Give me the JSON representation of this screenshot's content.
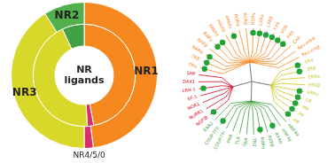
{
  "chart_data": {
    "type": "doughnut",
    "center_text": "NR ligands",
    "categories": [
      "NR1",
      "NR4/5/0",
      "NR3",
      "NR2"
    ],
    "rings": [
      {
        "values": [
          48,
          2,
          41,
          9
        ],
        "colors": [
          "#f5891f",
          "#d9306a",
          "#d8d82a",
          "#52b04c"
        ]
      },
      {
        "values": [
          47,
          2,
          44,
          7
        ],
        "colors": [
          "#f5891f",
          "#d9306a",
          "#d8d82a",
          "#43a047"
        ]
      }
    ]
  },
  "tree": {
    "clades": [
      {
        "color": "#f5891f",
        "leaves": [
          {
            "label": "TRα",
            "ligand": true
          },
          {
            "label": "TRβ",
            "ligand": true
          },
          {
            "label": "RARα",
            "ligand": true
          },
          {
            "label": "RARβ",
            "ligand": false
          },
          {
            "label": "RARγ",
            "ligand": true
          },
          {
            "label": "PPARα",
            "ligand": true
          },
          {
            "label": "PPARδ",
            "ligand": false
          },
          {
            "label": "PPARγ",
            "ligand": true
          },
          {
            "label": "RORα",
            "ligand": false
          },
          {
            "label": "RORβ",
            "ligand": false
          },
          {
            "label": "RORγ",
            "ligand": true
          },
          {
            "label": "LXRα",
            "ligand": true
          },
          {
            "label": "LXRβ",
            "ligand": true
          },
          {
            "label": "FXR",
            "ligand": true
          },
          {
            "label": "VDR",
            "ligand": true
          },
          {
            "label": "PXR",
            "ligand": true
          },
          {
            "label": "CAR",
            "ligand": false
          },
          {
            "label": "Rev-erbα",
            "ligand": false
          },
          {
            "label": "Rev-erbβ",
            "ligand": false
          }
        ]
      },
      {
        "color": "#c9c61e",
        "leaves": [
          {
            "label": "ERα",
            "ligand": true
          },
          {
            "label": "ERβ",
            "ligand": true
          },
          {
            "label": "ERRα",
            "ligand": false
          },
          {
            "label": "ERRβ",
            "ligand": false
          },
          {
            "label": "ERRγ",
            "ligand": true
          },
          {
            "label": "GR",
            "ligand": true
          },
          {
            "label": "MR",
            "ligand": true
          },
          {
            "label": "PR",
            "ligand": true
          },
          {
            "label": "AR",
            "ligand": true
          }
        ]
      },
      {
        "color": "#3f9f3f",
        "leaves": [
          {
            "label": "HNF4α",
            "ligand": false
          },
          {
            "label": "HNF4γ",
            "ligand": false
          },
          {
            "label": "RXRα",
            "ligand": true
          },
          {
            "label": "RXRβ",
            "ligand": false
          },
          {
            "label": "RXRγ",
            "ligand": true
          },
          {
            "label": "TR2",
            "ligand": false
          },
          {
            "label": "TR4",
            "ligand": false
          },
          {
            "label": "TLX",
            "ligand": false
          },
          {
            "label": "PNR",
            "ligand": false
          },
          {
            "label": "COUP-TFI",
            "ligand": false
          },
          {
            "label": "COUP-TFII",
            "ligand": true
          },
          {
            "label": "EAR2",
            "ligand": false
          }
        ]
      },
      {
        "color": "#d6001c",
        "leaves": [
          {
            "label": "NGFIB",
            "ligand": true
          },
          {
            "label": "NURR1",
            "ligand": false
          },
          {
            "label": "NOR1",
            "ligand": false
          },
          {
            "label": "SF-1",
            "ligand": false
          },
          {
            "label": "LRH-1",
            "ligand": true
          },
          {
            "label": "DAX1",
            "ligand": false
          },
          {
            "label": "SHP",
            "ligand": false
          }
        ]
      }
    ]
  }
}
